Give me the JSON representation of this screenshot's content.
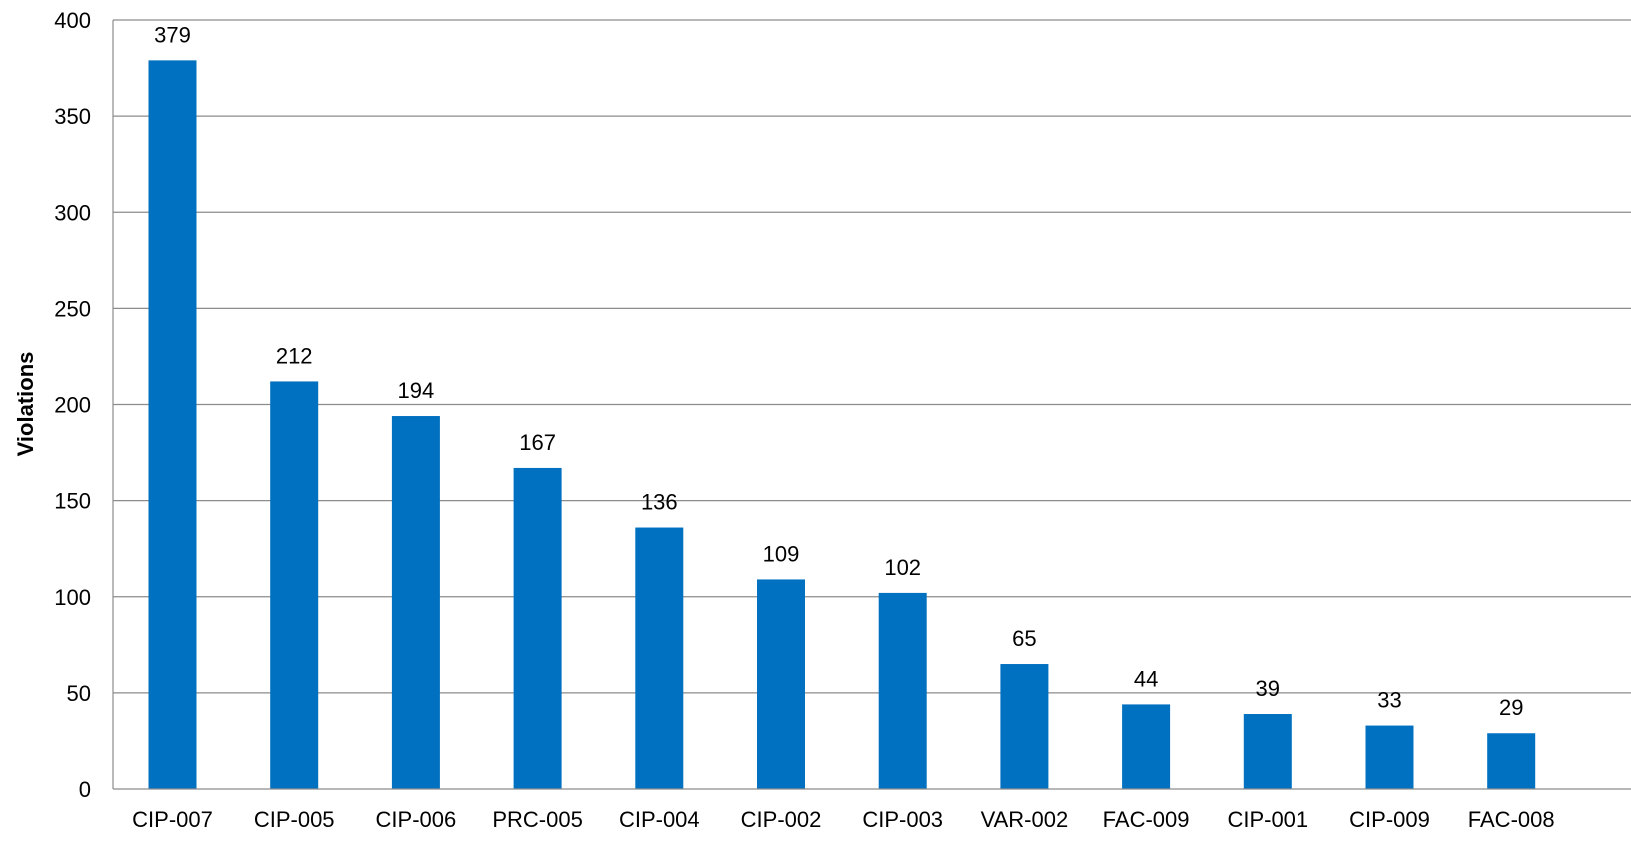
{
  "chart_data": {
    "type": "bar",
    "title": "",
    "xlabel": "",
    "ylabel": "Violations",
    "categories": [
      "CIP-007",
      "CIP-005",
      "CIP-006",
      "PRC-005",
      "CIP-004",
      "CIP-002",
      "CIP-003",
      "VAR-002",
      "FAC-009",
      "CIP-001",
      "CIP-009",
      "FAC-008"
    ],
    "values": [
      379,
      212,
      194,
      167,
      136,
      109,
      102,
      65,
      44,
      39,
      33,
      29
    ],
    "data_labels": [
      "379",
      "212",
      "194",
      "167",
      "136",
      "109",
      "102",
      "65",
      "44",
      "39",
      "33",
      "29"
    ],
    "ylim": [
      0,
      400
    ],
    "yticks": [
      0,
      50,
      100,
      150,
      200,
      250,
      300,
      350,
      400
    ],
    "ytick_labels": [
      "0",
      "50",
      "100",
      "150",
      "200",
      "250",
      "300",
      "350",
      "400"
    ],
    "grid": true,
    "legend": "none",
    "bar_color": "#0070C0",
    "grid_color": "#8c8c8c"
  }
}
